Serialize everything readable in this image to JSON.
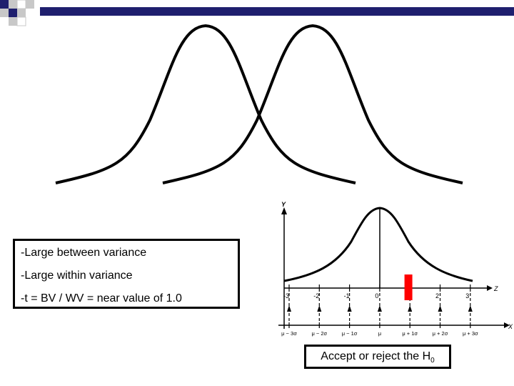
{
  "slide": {
    "colors": {
      "accent": "#1f1f6e",
      "corner_gray": "#c8c8c8",
      "marker": "#ff0000"
    }
  },
  "info_box": {
    "lines": [
      "-Large between variance",
      "-Large within variance",
      "-t = BV / WV = near value of 1.0"
    ]
  },
  "normal_plot": {
    "y_axis_label": "Y",
    "z_axis_label": "Z",
    "x_axis_label": "X",
    "z_ticks": [
      "-3",
      "-2",
      "-1",
      "0",
      "1",
      "2",
      "3"
    ],
    "x_ticks": [
      "μ − 3σ",
      "μ − 2σ",
      "μ − 1σ",
      "μ",
      "μ + 1σ",
      "μ + 2σ",
      "μ + 3σ"
    ],
    "marker_z": 0.95
  },
  "decision": {
    "text": "Accept or reject the H",
    "subscript": "0"
  }
}
